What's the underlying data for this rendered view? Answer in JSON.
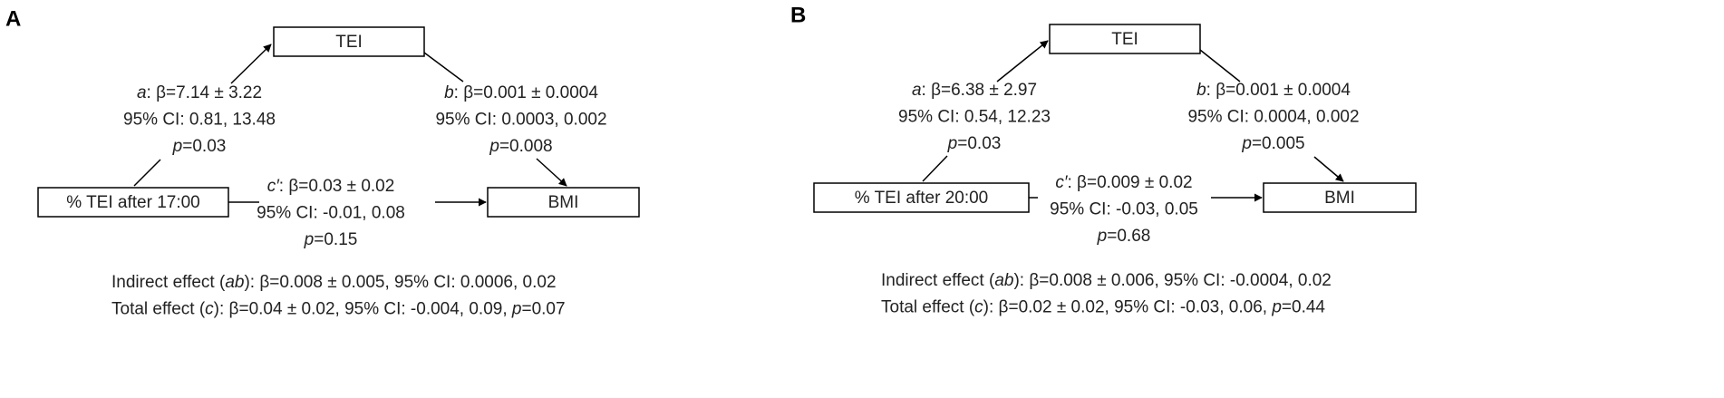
{
  "panels": [
    {
      "letter": "A",
      "mediator": "TEI",
      "predictor": "% TEI after 17:00",
      "outcome": "BMI",
      "a_path": [
        [
          {
            "text": "a",
            "italic": true
          },
          {
            "text": ": β=7.14 ± 3.22"
          }
        ],
        [
          {
            "text": "95% CI: 0.81, 13.48"
          }
        ],
        [
          {
            "text": "p",
            "italic": true
          },
          {
            "text": "=0.03"
          }
        ]
      ],
      "b_path": [
        [
          {
            "text": "b",
            "italic": true
          },
          {
            "text": ": β=0.001 ± 0.0004"
          }
        ],
        [
          {
            "text": "95% CI: 0.0003, 0.002"
          }
        ],
        [
          {
            "text": "p",
            "italic": true
          },
          {
            "text": "=0.008"
          }
        ]
      ],
      "c_path": [
        [
          {
            "text": "c′",
            "italic": true
          },
          {
            "text": ": β=0.03 ± 0.02"
          }
        ],
        [
          {
            "text": "95% CI: -0.01, 0.08"
          }
        ],
        [
          {
            "text": "p",
            "italic": true
          },
          {
            "text": "=0.15"
          }
        ]
      ],
      "summary": [
        [
          {
            "text": "Indirect effect ("
          },
          {
            "text": "ab",
            "italic": true
          },
          {
            "text": "): β=0.008 ± 0.005, 95% CI: 0.0006, 0.02"
          }
        ],
        [
          {
            "text": "Total effect ("
          },
          {
            "text": "c",
            "italic": true
          },
          {
            "text": "): β=0.04 ± 0.02, 95% CI: -0.004, 0.09, "
          },
          {
            "text": "p",
            "italic": true
          },
          {
            "text": "=0.07"
          }
        ]
      ]
    },
    {
      "letter": "B",
      "mediator": "TEI",
      "predictor": "% TEI after 20:00",
      "outcome": "BMI",
      "a_path": [
        [
          {
            "text": "a",
            "italic": true
          },
          {
            "text": ": β=6.38 ± 2.97"
          }
        ],
        [
          {
            "text": "95% CI: 0.54, 12.23"
          }
        ],
        [
          {
            "text": "p",
            "italic": true
          },
          {
            "text": "=0.03"
          }
        ]
      ],
      "b_path": [
        [
          {
            "text": "b",
            "italic": true
          },
          {
            "text": ": β=0.001 ± 0.0004"
          }
        ],
        [
          {
            "text": "95% CI: 0.0004, 0.002"
          }
        ],
        [
          {
            "text": "p",
            "italic": true
          },
          {
            "text": "=0.005"
          }
        ]
      ],
      "c_path": [
        [
          {
            "text": "c′",
            "italic": true
          },
          {
            "text": ": β=0.009 ± 0.02"
          }
        ],
        [
          {
            "text": "95% CI: -0.03, 0.05"
          }
        ],
        [
          {
            "text": "p",
            "italic": true
          },
          {
            "text": "=0.68"
          }
        ]
      ],
      "summary": [
        [
          {
            "text": "Indirect effect ("
          },
          {
            "text": "ab",
            "italic": true
          },
          {
            "text": "): β=0.008 ± 0.006, 95% CI: -0.0004, 0.02"
          }
        ],
        [
          {
            "text": "Total effect ("
          },
          {
            "text": "c",
            "italic": true
          },
          {
            "text": "): β=0.02 ± 0.02, 95% CI: -0.03, 0.06, "
          },
          {
            "text": "p",
            "italic": true
          },
          {
            "text": "=0.44"
          }
        ]
      ]
    }
  ]
}
